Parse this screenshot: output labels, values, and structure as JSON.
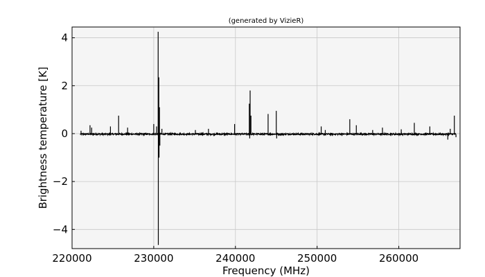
{
  "chart_data": {
    "type": "line",
    "title": "(generated by VizieR)",
    "xlabel": "Frequency (MHz)",
    "ylabel": "Brightness temperature [K]",
    "xlim": [
      220000,
      267500
    ],
    "ylim": [
      -4.8,
      4.45
    ],
    "grid": true,
    "x_ticks": [
      220000,
      230000,
      240000,
      250000,
      260000
    ],
    "x_tick_labels": [
      "220000",
      "230000",
      "240000",
      "250000",
      "260000"
    ],
    "y_ticks": [
      4,
      2,
      0,
      -2,
      -4
    ],
    "y_tick_labels": [
      "4",
      "2",
      "0",
      "−2",
      "−4"
    ],
    "series": [
      {
        "line_color": "#000000",
        "x_range": [
          221000,
          267000
        ],
        "baseline": -0.02,
        "noise_amplitude": 0.06,
        "peaks": [
          {
            "x": 221100,
            "y": 0.12
          },
          {
            "x": 222200,
            "y": 0.35
          },
          {
            "x": 222400,
            "y": 0.25
          },
          {
            "x": 224700,
            "y": 0.3
          },
          {
            "x": 225700,
            "y": 0.75
          },
          {
            "x": 226800,
            "y": 0.25
          },
          {
            "x": 230000,
            "y": 0.4
          },
          {
            "x": 230350,
            "y": 0.3
          },
          {
            "x": 230540,
            "y": 4.25
          },
          {
            "x": 230560,
            "y": -4.65
          },
          {
            "x": 230620,
            "y": 2.35
          },
          {
            "x": 230650,
            "y": -1.0
          },
          {
            "x": 230700,
            "y": 1.1
          },
          {
            "x": 230750,
            "y": -0.5
          },
          {
            "x": 231000,
            "y": 0.2
          },
          {
            "x": 235100,
            "y": 0.15
          },
          {
            "x": 236700,
            "y": 0.2
          },
          {
            "x": 239900,
            "y": 0.4
          },
          {
            "x": 241700,
            "y": 1.25
          },
          {
            "x": 241750,
            "y": -0.2
          },
          {
            "x": 241800,
            "y": 1.8
          },
          {
            "x": 241900,
            "y": 0.75
          },
          {
            "x": 244000,
            "y": 0.82
          },
          {
            "x": 245000,
            "y": 0.95
          },
          {
            "x": 245050,
            "y": -0.2
          },
          {
            "x": 250500,
            "y": 0.3
          },
          {
            "x": 251000,
            "y": 0.15
          },
          {
            "x": 254000,
            "y": 0.6
          },
          {
            "x": 254800,
            "y": 0.35
          },
          {
            "x": 256800,
            "y": 0.15
          },
          {
            "x": 258000,
            "y": 0.25
          },
          {
            "x": 260300,
            "y": 0.18
          },
          {
            "x": 261900,
            "y": 0.45
          },
          {
            "x": 263800,
            "y": 0.3
          },
          {
            "x": 266000,
            "y": -0.25
          },
          {
            "x": 266300,
            "y": 0.2
          },
          {
            "x": 266800,
            "y": 0.75
          },
          {
            "x": 267000,
            "y": -0.15
          }
        ]
      }
    ]
  }
}
